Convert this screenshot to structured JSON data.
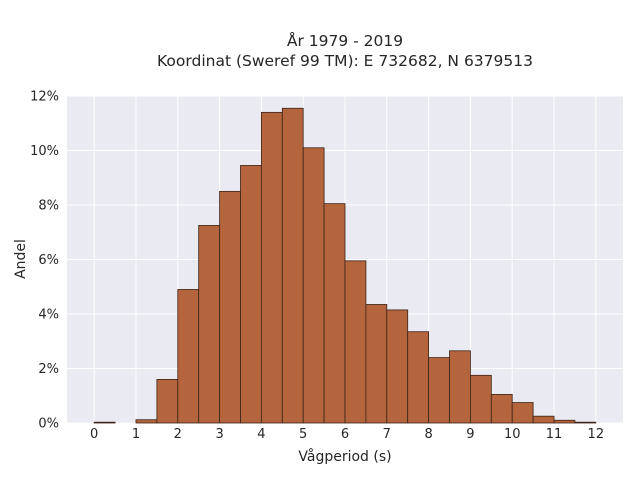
{
  "chart_data": {
    "type": "bar",
    "title_lines": [
      "År 1979 - 2019",
      "Koordinat (Sweref 99 TM): E 732682, N 6379513"
    ],
    "xlabel": "Vågperiod (s)",
    "ylabel": "Andel",
    "xlim": [
      -0.65,
      12.65
    ],
    "ylim": [
      0,
      12
    ],
    "x_ticks": [
      0,
      1,
      2,
      3,
      4,
      5,
      6,
      7,
      8,
      9,
      10,
      11,
      12
    ],
    "x_tick_labels": [
      "0",
      "1",
      "2",
      "3",
      "4",
      "5",
      "6",
      "7",
      "8",
      "9",
      "10",
      "11",
      "12"
    ],
    "y_ticks": [
      0,
      2,
      4,
      6,
      8,
      10,
      12
    ],
    "y_tick_labels": [
      "0%",
      "2%",
      "4%",
      "6%",
      "8%",
      "10%",
      "12%"
    ],
    "bin_width": 0.5,
    "bins": [
      {
        "x0": 0.0,
        "value": 0.03
      },
      {
        "x0": 0.5,
        "value": 0.0
      },
      {
        "x0": 1.0,
        "value": 0.12
      },
      {
        "x0": 1.5,
        "value": 1.6
      },
      {
        "x0": 2.0,
        "value": 4.9
      },
      {
        "x0": 2.5,
        "value": 7.25
      },
      {
        "x0": 3.0,
        "value": 8.5
      },
      {
        "x0": 3.5,
        "value": 9.45
      },
      {
        "x0": 4.0,
        "value": 11.4
      },
      {
        "x0": 4.5,
        "value": 11.55
      },
      {
        "x0": 5.0,
        "value": 10.1
      },
      {
        "x0": 5.5,
        "value": 8.05
      },
      {
        "x0": 6.0,
        "value": 5.95
      },
      {
        "x0": 6.5,
        "value": 4.35
      },
      {
        "x0": 7.0,
        "value": 4.15
      },
      {
        "x0": 7.5,
        "value": 3.35
      },
      {
        "x0": 8.0,
        "value": 2.4
      },
      {
        "x0": 8.5,
        "value": 2.65
      },
      {
        "x0": 9.0,
        "value": 1.75
      },
      {
        "x0": 9.5,
        "value": 1.05
      },
      {
        "x0": 10.0,
        "value": 0.75
      },
      {
        "x0": 10.5,
        "value": 0.25
      },
      {
        "x0": 11.0,
        "value": 0.1
      },
      {
        "x0": 11.5,
        "value": 0.03
      }
    ],
    "grid": true,
    "colors": {
      "bar_fill": "#b5653e",
      "bar_edge": "#3b2316",
      "plot_background": "#eaeaf2",
      "grid": "#ffffff"
    }
  }
}
